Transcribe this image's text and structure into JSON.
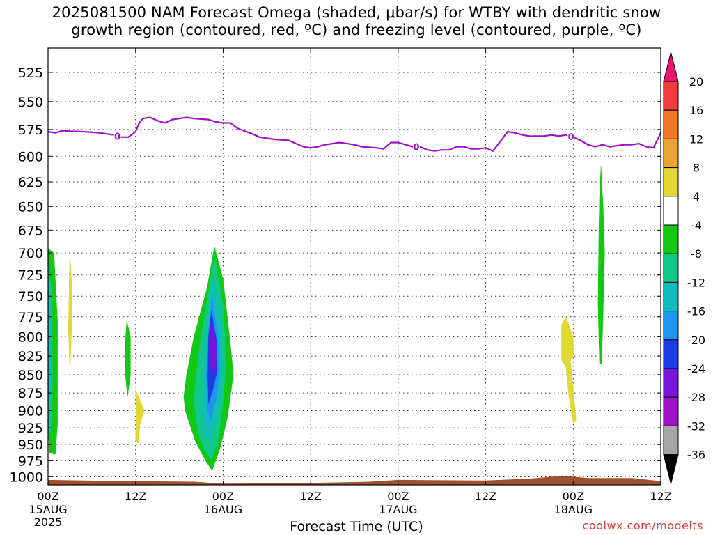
{
  "chart_data": {
    "type": "heatmap",
    "title_line1": "2025081500 NAM Forecast Omega (shaded, μbar/s) for WTBY with dendritic snow",
    "title_line2": "growth region (contoured, red, ºC) and freezing level (contoured, purple, ºC)",
    "xlabel": "Forecast Time (UTC)",
    "credit": "coolwx.com/modelts",
    "x_unit": "hours from 2025081500",
    "xlim": [
      0,
      84
    ],
    "x_ticks": [
      {
        "hour": 0,
        "label": "00Z",
        "sub": "15AUG",
        "sub2": "2025"
      },
      {
        "hour": 12,
        "label": "12Z",
        "sub": "",
        "sub2": ""
      },
      {
        "hour": 24,
        "label": "00Z",
        "sub": "16AUG",
        "sub2": ""
      },
      {
        "hour": 36,
        "label": "12Z",
        "sub": "",
        "sub2": ""
      },
      {
        "hour": 48,
        "label": "00Z",
        "sub": "17AUG",
        "sub2": ""
      },
      {
        "hour": 60,
        "label": "12Z",
        "sub": "",
        "sub2": ""
      },
      {
        "hour": 72,
        "label": "00Z",
        "sub": "18AUG",
        "sub2": ""
      },
      {
        "hour": 84,
        "label": "12Z",
        "sub": "",
        "sub2": ""
      }
    ],
    "y_unit": "mb",
    "y_scale": "log",
    "ylim": [
      1013,
      505
    ],
    "y_ticks": [
      525,
      550,
      575,
      600,
      625,
      650,
      675,
      700,
      725,
      750,
      775,
      800,
      825,
      850,
      875,
      900,
      925,
      950,
      975,
      1000
    ],
    "grid": true,
    "colorbar": {
      "levels": [
        -36,
        -32,
        -28,
        -24,
        -20,
        -16,
        -12,
        -8,
        -4,
        4,
        8,
        12,
        16,
        20
      ],
      "labels": [
        "20",
        "16",
        "12",
        "8",
        "4",
        "-4",
        "-8",
        "-12",
        "-16",
        "-20",
        "-24",
        "-28",
        "-32",
        "-36"
      ],
      "colors_top_to_bottom": [
        "#e8146e",
        "#f03c3c",
        "#f2782a",
        "#e8a532",
        "#e2d832",
        "#ffffff",
        "#12c812",
        "#10c88a",
        "#12bcbc",
        "#1e96f0",
        "#1e3ce6",
        "#7814dc",
        "#a010c8",
        "#a6a6a6",
        "#000000"
      ]
    },
    "omega_regions": [
      {
        "level": "-4",
        "color": "#12c812",
        "points": [
          [
            0.0,
            695
          ],
          [
            0.8,
            700
          ],
          [
            1.3,
            780
          ],
          [
            1.3,
            920
          ],
          [
            1.0,
            965
          ],
          [
            0.2,
            963
          ]
        ]
      },
      {
        "level": "-8",
        "color": "#10c88a",
        "points": [
          [
            0.0,
            710
          ],
          [
            0.5,
            745
          ],
          [
            0.6,
            860
          ],
          [
            0.4,
            925
          ],
          [
            0.0,
            945
          ]
        ]
      },
      {
        "level": "-12",
        "color": "#12bcbc",
        "points": [
          [
            0.0,
            720
          ],
          [
            0.35,
            760
          ],
          [
            0.35,
            880
          ],
          [
            0.0,
            930
          ]
        ]
      },
      {
        "level": "4",
        "color": "#e2d832",
        "points": [
          [
            3.0,
            700
          ],
          [
            3.3,
            745
          ],
          [
            3.2,
            800
          ],
          [
            3.0,
            850
          ],
          [
            2.8,
            790
          ],
          [
            2.9,
            730
          ]
        ]
      },
      {
        "level": "-4",
        "color": "#12c812",
        "points": [
          [
            10.8,
            780
          ],
          [
            11.3,
            800
          ],
          [
            11.3,
            850
          ],
          [
            10.9,
            880
          ],
          [
            10.6,
            850
          ],
          [
            10.6,
            805
          ]
        ]
      },
      {
        "level": "4",
        "color": "#e2d832",
        "points": [
          [
            12.0,
            870
          ],
          [
            12.6,
            885
          ],
          [
            13.2,
            900
          ],
          [
            12.6,
            920
          ],
          [
            12.4,
            948
          ],
          [
            12.0,
            945
          ],
          [
            12.1,
            905
          ]
        ]
      },
      {
        "level": "-4",
        "color": "#12c812",
        "points": [
          [
            22.8,
            693
          ],
          [
            24.0,
            730
          ],
          [
            25.0,
            810
          ],
          [
            25.4,
            850
          ],
          [
            24.6,
            910
          ],
          [
            23.6,
            955
          ],
          [
            22.5,
            990
          ],
          [
            21.6,
            975
          ],
          [
            20.2,
            945
          ],
          [
            18.8,
            900
          ],
          [
            18.6,
            880
          ],
          [
            19.0,
            850
          ],
          [
            20.0,
            800
          ],
          [
            21.8,
            740
          ]
        ]
      },
      {
        "level": "-8",
        "color": "#10c88a",
        "points": [
          [
            22.8,
            705
          ],
          [
            24.0,
            760
          ],
          [
            24.4,
            830
          ],
          [
            24.0,
            890
          ],
          [
            23.2,
            950
          ],
          [
            22.4,
            973
          ],
          [
            21.5,
            960
          ],
          [
            20.5,
            930
          ],
          [
            20.0,
            885
          ],
          [
            20.8,
            810
          ],
          [
            21.9,
            750
          ]
        ]
      },
      {
        "level": "-12",
        "color": "#12bcbc",
        "points": [
          [
            22.7,
            730
          ],
          [
            23.6,
            780
          ],
          [
            23.9,
            830
          ],
          [
            23.6,
            880
          ],
          [
            22.9,
            915
          ],
          [
            22.2,
            945
          ],
          [
            21.6,
            940
          ],
          [
            21.1,
            905
          ],
          [
            21.3,
            840
          ],
          [
            21.9,
            780
          ]
        ]
      },
      {
        "level": "-16",
        "color": "#1e96f0",
        "points": [
          [
            22.5,
            750
          ],
          [
            23.3,
            800
          ],
          [
            23.5,
            845
          ],
          [
            23.0,
            885
          ],
          [
            22.3,
            915
          ],
          [
            21.9,
            900
          ],
          [
            21.7,
            850
          ],
          [
            22.0,
            790
          ]
        ]
      },
      {
        "level": "-20",
        "color": "#1e3ce6",
        "points": [
          [
            22.4,
            768
          ],
          [
            23.1,
            805
          ],
          [
            23.2,
            845
          ],
          [
            22.6,
            870
          ],
          [
            22.0,
            890
          ],
          [
            21.9,
            850
          ],
          [
            22.0,
            800
          ]
        ]
      },
      {
        "level": "-24",
        "color": "#7814dc",
        "points": [
          [
            22.4,
            780
          ],
          [
            23.0,
            810
          ],
          [
            23.0,
            840
          ],
          [
            22.5,
            848
          ],
          [
            22.1,
            830
          ],
          [
            22.1,
            800
          ]
        ]
      },
      {
        "level": "4",
        "color": "#e2d832",
        "points": [
          [
            71.0,
            775
          ],
          [
            72.0,
            800
          ],
          [
            72.0,
            825
          ],
          [
            71.6,
            830
          ],
          [
            72.0,
            870
          ],
          [
            72.4,
            915
          ],
          [
            72.0,
            918
          ],
          [
            71.4,
            880
          ],
          [
            71.0,
            840
          ],
          [
            70.4,
            830
          ],
          [
            70.4,
            785
          ]
        ]
      },
      {
        "level": "-4",
        "color": "#12c812",
        "points": [
          [
            75.8,
            610
          ],
          [
            76.1,
            650
          ],
          [
            76.3,
            700
          ],
          [
            76.1,
            770
          ],
          [
            75.9,
            835
          ],
          [
            75.6,
            835
          ],
          [
            75.4,
            760
          ],
          [
            75.5,
            680
          ],
          [
            75.6,
            640
          ]
        ]
      }
    ],
    "freezing_level_0C": {
      "color": "#a010c8",
      "points": [
        [
          0,
          577
        ],
        [
          1,
          578
        ],
        [
          2,
          576
        ],
        [
          3,
          576.5
        ],
        [
          5,
          577
        ],
        [
          7,
          578
        ],
        [
          9,
          580
        ],
        [
          10,
          582
        ],
        [
          11,
          582
        ],
        [
          12,
          577
        ],
        [
          12.5,
          569
        ],
        [
          13,
          565
        ],
        [
          14,
          564
        ],
        [
          15,
          567
        ],
        [
          16,
          569
        ],
        [
          17,
          566
        ],
        [
          19,
          564
        ],
        [
          20,
          565
        ],
        [
          22,
          566
        ],
        [
          23,
          568
        ],
        [
          24,
          569
        ],
        [
          25,
          569
        ],
        [
          26,
          574
        ],
        [
          28,
          579
        ],
        [
          29,
          582
        ],
        [
          31,
          584
        ],
        [
          33,
          585
        ],
        [
          34,
          588
        ],
        [
          35,
          591
        ],
        [
          36,
          592
        ],
        [
          37,
          591
        ],
        [
          38,
          589
        ],
        [
          39,
          588
        ],
        [
          40,
          587
        ],
        [
          41,
          588
        ],
        [
          42,
          589
        ],
        [
          43,
          591
        ],
        [
          45,
          592
        ],
        [
          46,
          593
        ],
        [
          47,
          587
        ],
        [
          48,
          587
        ],
        [
          49,
          589
        ],
        [
          50,
          591
        ],
        [
          51,
          591
        ],
        [
          52,
          594
        ],
        [
          53,
          595
        ],
        [
          54,
          594
        ],
        [
          55,
          594
        ],
        [
          56,
          591
        ],
        [
          57,
          591
        ],
        [
          58,
          593
        ],
        [
          59,
          593
        ],
        [
          60,
          592
        ],
        [
          61,
          595
        ],
        [
          62,
          586
        ],
        [
          63,
          577
        ],
        [
          64,
          578
        ],
        [
          65,
          580
        ],
        [
          66,
          581
        ],
        [
          67,
          581
        ],
        [
          68,
          581
        ],
        [
          69,
          580
        ],
        [
          70,
          581
        ],
        [
          71,
          580
        ],
        [
          72,
          582
        ],
        [
          73,
          585
        ],
        [
          74,
          589
        ],
        [
          75,
          591
        ],
        [
          76,
          589
        ],
        [
          77,
          591
        ],
        [
          78,
          590
        ],
        [
          79,
          589
        ],
        [
          80,
          589
        ],
        [
          81,
          588
        ],
        [
          82,
          591
        ],
        [
          83,
          592
        ],
        [
          84,
          578
        ]
      ],
      "label": "0",
      "label_hours": [
        9.5,
        50.5,
        71.7
      ]
    },
    "terrain": {
      "color": "#a0522d",
      "points": [
        [
          0,
          1005
        ],
        [
          10,
          1007
        ],
        [
          20,
          1008
        ],
        [
          24,
          1011
        ],
        [
          36,
          1010
        ],
        [
          44,
          1008
        ],
        [
          48,
          1005
        ],
        [
          60,
          1006
        ],
        [
          66,
          1003
        ],
        [
          70,
          999
        ],
        [
          72,
          1000
        ],
        [
          74,
          1002
        ],
        [
          80,
          1002
        ],
        [
          84,
          1007
        ]
      ]
    }
  }
}
